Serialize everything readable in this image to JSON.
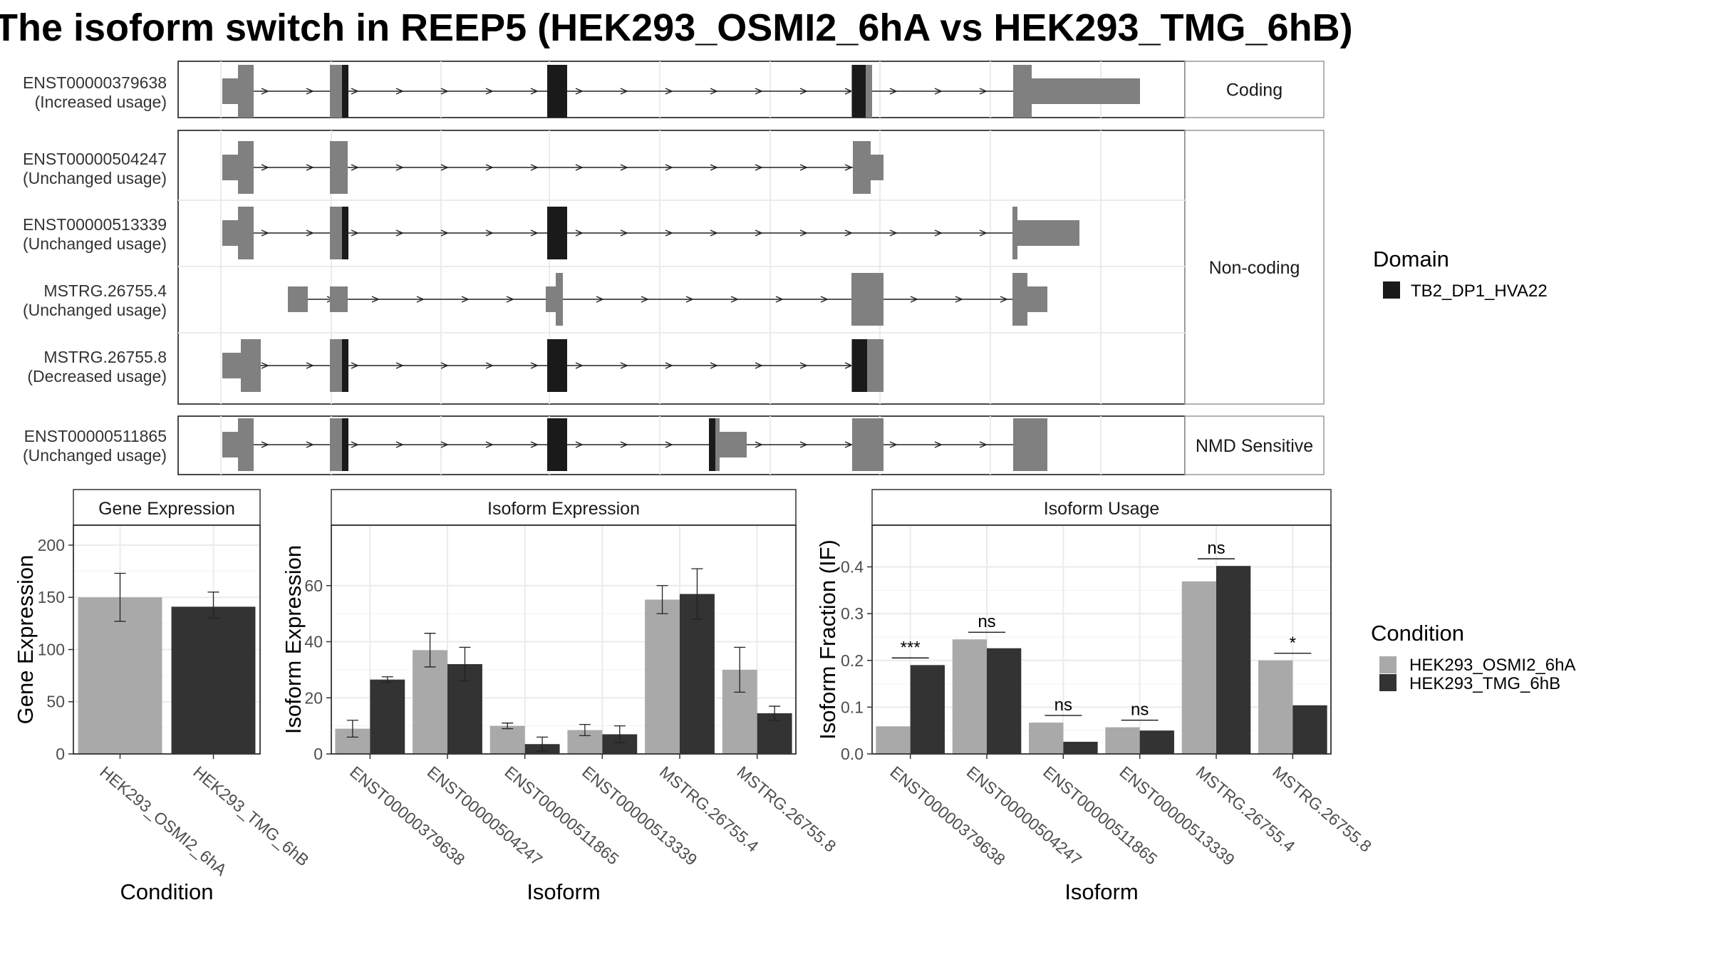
{
  "title": "The isoform switch in REEP5 (HEK293_OSMI2_6hA vs HEK293_TMG_6hB)",
  "colors": {
    "exon": "#808080",
    "domain": "#1a1a1a",
    "cond1": "#a9a9a9",
    "cond2": "#333333",
    "grid": "#ebebeb",
    "panel_border": "#333333"
  },
  "transcripts": {
    "groups": [
      {
        "label": "Coding",
        "transcripts": [
          {
            "id": "ENST00000379638",
            "usage": "(Increased usage)"
          }
        ]
      },
      {
        "label": "Non-coding",
        "transcripts": [
          {
            "id": "ENST00000504247",
            "usage": "(Unchanged usage)"
          },
          {
            "id": "ENST00000513339",
            "usage": "(Unchanged usage)"
          },
          {
            "id": "MSTRG.26755.4",
            "usage": "(Unchanged usage)"
          },
          {
            "id": "MSTRG.26755.8",
            "usage": "(Decreased usage)"
          }
        ]
      },
      {
        "label": "NMD Sensitive",
        "transcripts": [
          {
            "id": "ENST00000511865",
            "usage": "(Unchanged usage)"
          }
        ]
      }
    ]
  },
  "legend_domain": {
    "title": "Domain",
    "items": [
      {
        "label": "TB2_DP1_HVA22",
        "color": "#1a1a1a"
      }
    ]
  },
  "legend_condition": {
    "title": "Condition",
    "items": [
      {
        "label": "HEK293_OSMI2_6hA",
        "color": "#a9a9a9"
      },
      {
        "label": "HEK293_TMG_6hB",
        "color": "#333333"
      }
    ]
  },
  "chart_data": [
    {
      "type": "bar",
      "title": "Gene Expression",
      "xlabel": "Condition",
      "ylabel": "Gene Expression",
      "ylim": [
        0,
        215
      ],
      "yticks": [
        0,
        50,
        100,
        150,
        200
      ],
      "categories": [
        "HEK293_OSMI2_6hA",
        "HEK293_TMG_6hB"
      ],
      "series": [
        {
          "values": [
            150,
            141
          ],
          "errors": [
            [
              127,
              173
            ],
            [
              130,
              155
            ]
          ]
        }
      ]
    },
    {
      "type": "bar",
      "title": "Isoform Expression",
      "xlabel": "Isoform",
      "ylabel": "Isoform Expression",
      "ylim": [
        0,
        80
      ],
      "yticks": [
        0,
        20,
        40,
        60
      ],
      "categories": [
        "ENST00000379638",
        "ENST00000504247",
        "ENST00000511865",
        "ENST00000513339",
        "MSTRG.26755.4",
        "MSTRG.26755.8"
      ],
      "series": [
        {
          "name": "HEK293_OSMI2_6hA",
          "values": [
            9,
            37,
            10,
            8.5,
            55,
            30
          ],
          "errors": [
            [
              6,
              12
            ],
            [
              31,
              43
            ],
            [
              9,
              11
            ],
            [
              6.5,
              10.5
            ],
            [
              50,
              60
            ],
            [
              22,
              38
            ]
          ]
        },
        {
          "name": "HEK293_TMG_6hB",
          "values": [
            26.5,
            32,
            3.5,
            7,
            57,
            14.5
          ],
          "errors": [
            [
              25.5,
              27.5
            ],
            [
              26,
              38
            ],
            [
              1,
              6
            ],
            [
              4,
              10
            ],
            [
              48,
              66
            ],
            [
              12,
              17
            ]
          ]
        }
      ]
    },
    {
      "type": "bar",
      "title": "Isoform Usage",
      "xlabel": "Isoform",
      "ylabel": "Isoform Fraction (IF)",
      "ylim": [
        0,
        0.48
      ],
      "yticks": [
        0,
        0.1,
        0.2,
        0.3,
        0.4
      ],
      "ytick_labels": [
        "0.0",
        "0.1",
        "0.2",
        "0.3",
        "0.4"
      ],
      "categories": [
        "ENST00000379638",
        "ENST00000504247",
        "ENST00000511865",
        "ENST00000513339",
        "MSTRG.26755.4",
        "MSTRG.26755.8"
      ],
      "series": [
        {
          "name": "HEK293_OSMI2_6hA",
          "values": [
            0.059,
            0.245,
            0.067,
            0.057,
            0.369,
            0.2
          ]
        },
        {
          "name": "HEK293_TMG_6hB",
          "values": [
            0.19,
            0.226,
            0.026,
            0.05,
            0.402,
            0.104
          ]
        }
      ],
      "significance": [
        "***",
        "ns",
        "ns",
        "ns",
        "ns",
        "*"
      ]
    }
  ]
}
